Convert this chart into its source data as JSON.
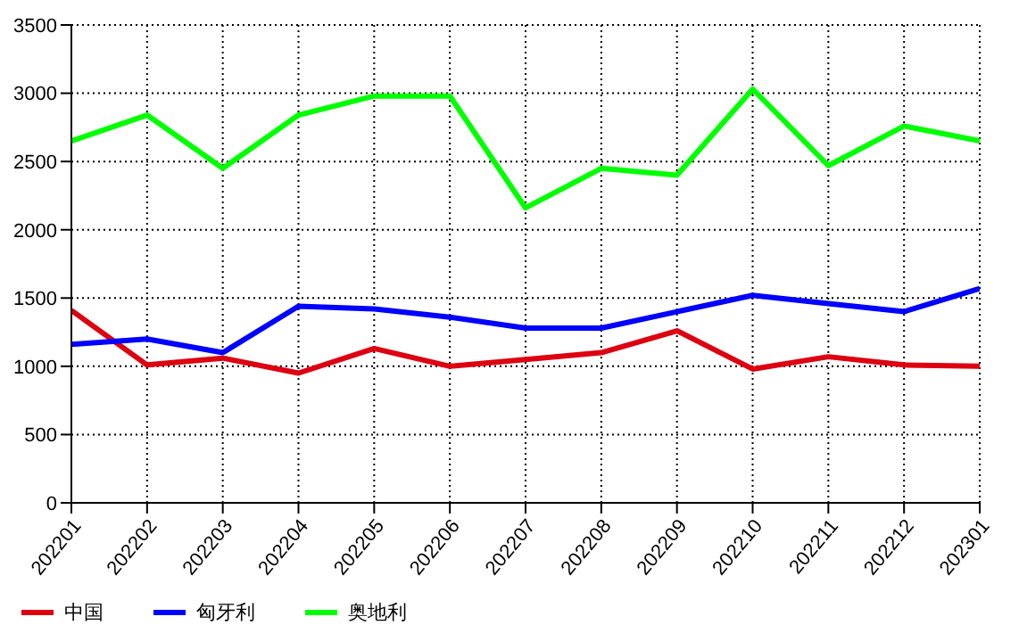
{
  "chart_data": {
    "type": "line",
    "categories": [
      "202201",
      "202202",
      "202203",
      "202204",
      "202205",
      "202206",
      "202207",
      "202208",
      "202209",
      "202210",
      "202211",
      "202212",
      "202301"
    ],
    "series": [
      {
        "name": "中国",
        "color": "#dd0011",
        "values": [
          1410,
          1010,
          1060,
          950,
          1130,
          1000,
          1050,
          1100,
          1260,
          980,
          1070,
          1010,
          1000
        ]
      },
      {
        "name": "匈牙利",
        "color": "#0000ff",
        "values": [
          1160,
          1200,
          1100,
          1440,
          1420,
          1360,
          1280,
          1280,
          1400,
          1520,
          1460,
          1400,
          1570
        ]
      },
      {
        "name": "奥地利",
        "color": "#00ff00",
        "values": [
          2650,
          2840,
          2450,
          2840,
          2980,
          2980,
          2160,
          2450,
          2400,
          3030,
          2470,
          2760,
          2650
        ]
      }
    ],
    "ylim": [
      0,
      3500
    ],
    "yticks": [
      0,
      500,
      1000,
      1500,
      2000,
      2500,
      3000,
      3500
    ],
    "grid": true,
    "legend": "bottom left",
    "marker": "none",
    "line_style": "solid"
  }
}
